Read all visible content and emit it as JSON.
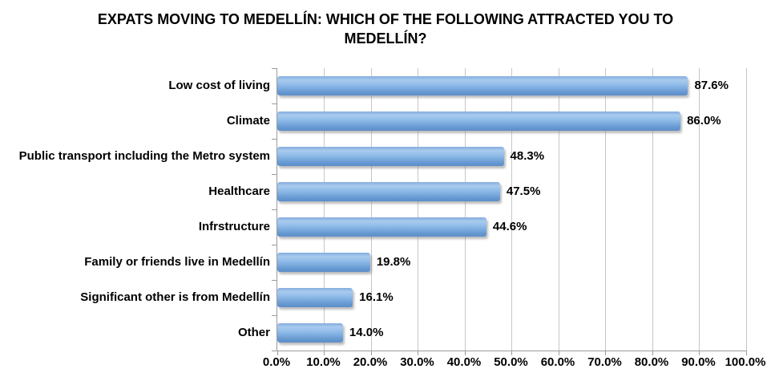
{
  "chart_data": {
    "type": "bar",
    "orientation": "horizontal",
    "title": "EXPATS MOVING TO MEDELLÍN:  WHICH OF THE FOLLOWING ATTRACTED YOU TO MEDELLÍN?",
    "title_line1": "EXPATS MOVING TO MEDELLÍN:  WHICH OF THE FOLLOWING ATTRACTED YOU TO",
    "title_line2": "MEDELLÍN?",
    "categories": [
      "Low cost of living",
      "Climate",
      "Public transport including the Metro system",
      "Healthcare",
      "Infrstructure",
      "Family or friends live in Medellín",
      "Significant other is from Medellín",
      "Other"
    ],
    "values": [
      87.6,
      86.0,
      48.3,
      47.5,
      44.6,
      19.8,
      16.1,
      14.0
    ],
    "value_labels": [
      "87.6%",
      "86.0%",
      "48.3%",
      "47.5%",
      "44.6%",
      "19.8%",
      "16.1%",
      "14.0%"
    ],
    "x_ticks": [
      "0.0%",
      "10.0%",
      "20.0%",
      "30.0%",
      "40.0%",
      "50.0%",
      "60.0%",
      "70.0%",
      "80.0%",
      "90.0%",
      "100.0%"
    ],
    "xlim": [
      0,
      100
    ],
    "grid": "vertical-only",
    "legend": "none",
    "colors": {
      "bar_top": "#84ACDE",
      "bar_highlight": "#A9CBEE",
      "bar_mid": "#8FBBE9",
      "bar_lower": "#6496CF",
      "bar_bottom": "#5E8EC8",
      "gridline": "#C6C6C6",
      "axis": "#9B9B9B",
      "text": "#000000",
      "background": "#FFFFFF"
    }
  }
}
